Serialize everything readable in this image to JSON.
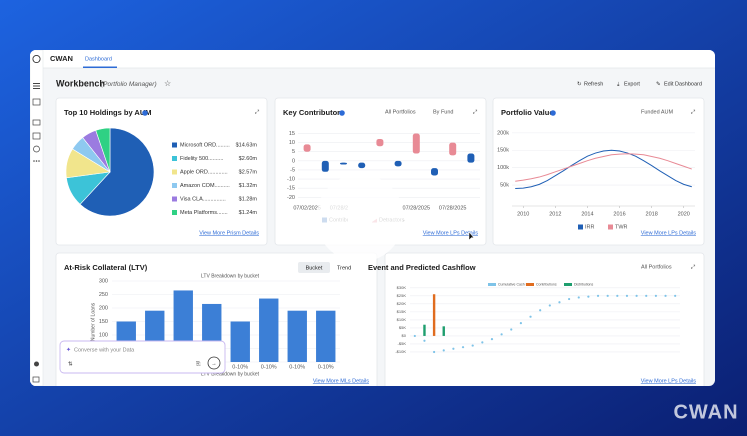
{
  "app": {
    "brand": "CWAN",
    "tab": "Dashboard",
    "title": "Workbench",
    "subtitle": "(Portfolio Manager)",
    "actions": [
      "Refresh",
      "Export",
      "Edit Dashboard"
    ]
  },
  "holdings": {
    "title": "Top 10 Holdings by AUM",
    "type": "pie",
    "labels": [
      "Microsoft ORD.........",
      "Fidelity 500..........",
      "Apple ORD.............",
      "Amazon COM..........",
      "Visa CLA...............",
      "Meta Platforms......."
    ],
    "values": [
      14.63,
      2.6,
      2.57,
      1.32,
      1.28,
      1.24
    ],
    "value_labels": [
      "$14.63m",
      "$2.60m",
      "$2.57m",
      "$1.32m",
      "$1.28m",
      "$1.24m"
    ],
    "colors": [
      "#1f5fb5",
      "#3cc3d8",
      "#f1e58c",
      "#8ec9f0",
      "#9b7be0",
      "#2fd184"
    ],
    "link": "View More Prism Details"
  },
  "contributors": {
    "title": "Key Contributors",
    "filters": [
      "All Portfolios",
      "By Fund"
    ],
    "type": "floating-bar",
    "categories": [
      "07/02/2025",
      null,
      "07/28/2025",
      null,
      null,
      null,
      "07/28/2025",
      null,
      "07/28/2025",
      null
    ],
    "ylim": [
      -22,
      18
    ],
    "yticks": [
      15,
      10,
      5,
      0,
      -5,
      -10,
      -15,
      -20
    ],
    "series": [
      {
        "name": "Contributors",
        "color": "#1f5fb5",
        "low": [
          null,
          -6,
          -2,
          -4,
          null,
          -3,
          null,
          -8,
          null,
          -1
        ],
        "high": [
          null,
          0,
          -1,
          -1,
          null,
          0,
          null,
          -4,
          null,
          4
        ]
      },
      {
        "name": "Detractors",
        "color": "#e88a95",
        "low": [
          5,
          null,
          null,
          null,
          8,
          null,
          4,
          null,
          3,
          null
        ],
        "high": [
          9,
          null,
          null,
          null,
          12,
          null,
          15,
          null,
          10,
          null
        ]
      }
    ],
    "link": "View More LPs Details"
  },
  "portfolio_value": {
    "title": "Portfolio Value",
    "filter": "Funded AUM",
    "type": "line",
    "x": [
      2009.5,
      2010,
      2010.5,
      2011,
      2011.5,
      2012,
      2012.5,
      2013,
      2013.5,
      2014,
      2014.5,
      2015,
      2015.5,
      2016,
      2016.5,
      2017,
      2017.5,
      2018,
      2018.5,
      2019,
      2019.5,
      2020,
      2020.5
    ],
    "xlim": [
      2009.3,
      2020.7
    ],
    "xticks": [
      2010,
      2012,
      2014,
      2016,
      2018,
      2020
    ],
    "ylim": [
      7000,
      214000
    ],
    "yticks": [
      {
        "value": 200000,
        "label": "200k"
      },
      {
        "value": 150000,
        "label": "150k"
      },
      {
        "value": 100000,
        "label": "100k"
      },
      {
        "value": 50000,
        "label": "50k"
      }
    ],
    "series": [
      {
        "name": "IRR",
        "color": "#1f5fb5",
        "values": [
          40000,
          41000,
          45000,
          52000,
          63000,
          77000,
          91000,
          106000,
          120000,
          133000,
          142000,
          148000,
          150000,
          148000,
          142000,
          133000,
          120000,
          106000,
          91000,
          77000,
          63000,
          52000,
          45000
        ]
      },
      {
        "name": "TWR",
        "color": "#e88a95",
        "values": [
          61000,
          64000,
          68000,
          73000,
          80000,
          88000,
          96000,
          104000,
          112000,
          120000,
          127000,
          132000,
          137000,
          139000,
          140000,
          139000,
          137000,
          132000,
          127000,
          120000,
          112000,
          104000,
          96000
        ]
      }
    ],
    "link": "View More LPs Details"
  },
  "collateral": {
    "title": "At-Risk Collateral (LTV)",
    "buttons": [
      "Bucket",
      "Trend"
    ],
    "subtitle": "LTV Breakdown by bucket",
    "type": "bar",
    "y_label": "Number of Loans",
    "x_label": "LTV Breakdown by bucket",
    "categories": [
      null,
      null,
      null,
      null,
      "0-10%",
      "0-10%",
      "0-10%",
      "0-10%"
    ],
    "values": [
      150,
      190,
      265,
      215,
      150,
      235,
      190,
      190
    ],
    "color": "#3c7fd6",
    "ylim": [
      0,
      300
    ],
    "yticks": [
      0,
      50,
      100,
      150,
      200,
      250,
      300
    ],
    "link": "View More MLs Details"
  },
  "cashflow": {
    "title": "Event and Predicted Cashflow",
    "filter": "All Portfolios",
    "type": "combo",
    "ylim": [
      -15000,
      33000
    ],
    "yticks": [
      {
        "value": 30000,
        "label": "$30K"
      },
      {
        "value": 25000,
        "label": "$25K"
      },
      {
        "value": 20000,
        "label": "$20K"
      },
      {
        "value": 15000,
        "label": "$15K"
      },
      {
        "value": 10000,
        "label": "$10K"
      },
      {
        "value": 5000,
        "label": "$5K"
      },
      {
        "value": 0,
        "label": "$0"
      },
      {
        "value": -5000,
        "label": "-$5K"
      },
      {
        "value": -10000,
        "label": "-$10K"
      }
    ],
    "series": [
      {
        "name": "Cumulative Cash Flow",
        "color": "#7ec3e8",
        "values": [
          0,
          -3000,
          -10000,
          -9000,
          -8000,
          -7000,
          -6000,
          -4000,
          -2000,
          1000,
          4000,
          8000,
          12000,
          16000,
          19000,
          21000,
          23000,
          24000,
          24500,
          25000,
          25000,
          25000,
          25000,
          25000,
          25000,
          25000,
          25000,
          25000
        ]
      },
      {
        "name": "Contributions",
        "color": "#e06c1f",
        "values": [
          null,
          null,
          26000,
          null,
          null,
          null,
          null,
          null,
          null,
          null,
          null,
          null,
          null,
          null,
          null,
          null,
          null,
          null,
          null,
          null,
          null,
          null,
          null,
          null,
          null,
          null,
          null,
          null
        ]
      },
      {
        "name": "Distributions",
        "color": "#1e9e6e",
        "values": [
          null,
          7000,
          null,
          6000,
          null,
          null,
          null,
          null,
          null,
          null,
          null,
          null,
          null,
          null,
          null,
          null,
          null,
          null,
          null,
          null,
          null,
          null,
          null,
          null,
          null,
          null,
          null,
          null
        ]
      }
    ],
    "link": "View More LPs Details"
  },
  "chat": {
    "placeholder": "Converse with your Data"
  },
  "footer_brand": "CWAN"
}
